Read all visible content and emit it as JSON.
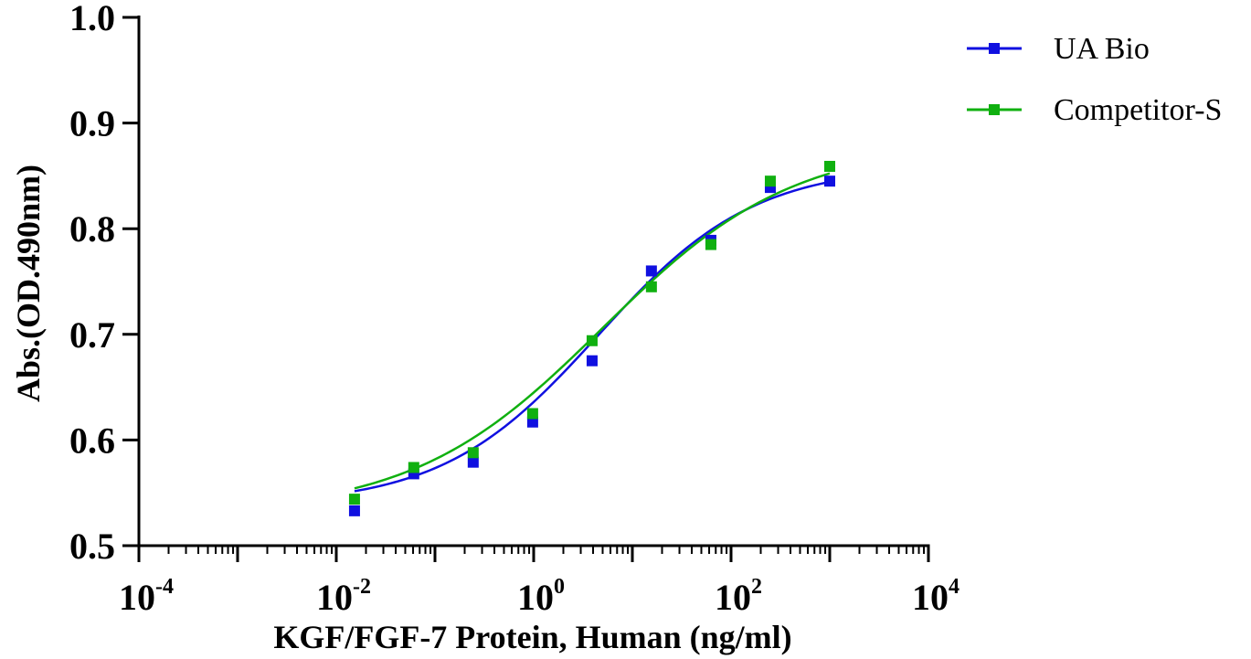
{
  "chart_data": {
    "type": "scatter",
    "x_scale": "log",
    "xlim": [
      0.0001,
      10000
    ],
    "ylim": [
      0.5,
      1.0
    ],
    "xlabel": "KGF/FGF-7 Protein, Human (ng/ml)",
    "ylabel": "Abs.(OD.490nm)",
    "x_ticks": [
      {
        "base": "10",
        "exp": "-4",
        "value": 0.0001
      },
      {
        "base": "10",
        "exp": "-2",
        "value": 0.01
      },
      {
        "base": "10",
        "exp": "0",
        "value": 1
      },
      {
        "base": "10",
        "exp": "2",
        "value": 100
      },
      {
        "base": "10",
        "exp": "4",
        "value": 10000
      }
    ],
    "y_ticks": [
      {
        "label": "0.5",
        "value": 0.5
      },
      {
        "label": "0.6",
        "value": 0.6
      },
      {
        "label": "0.7",
        "value": 0.7
      },
      {
        "label": "0.8",
        "value": 0.8
      },
      {
        "label": "0.9",
        "value": 0.9
      },
      {
        "label": "1.0",
        "value": 1.0
      }
    ],
    "grid": false,
    "legend_position": "top-right",
    "series": [
      {
        "name": "UA Bio",
        "color": "#1010e0",
        "marker": "square",
        "x": [
          0.0153,
          0.061,
          0.244,
          0.977,
          3.91,
          15.6,
          62.5,
          250,
          1000
        ],
        "y": [
          0.533,
          0.568,
          0.579,
          0.617,
          0.675,
          0.76,
          0.789,
          0.839,
          0.845
        ],
        "fit": {
          "bottom": 0.538,
          "top": 0.86,
          "ec50": 4.5,
          "hill": 0.55
        }
      },
      {
        "name": "Competitor-S",
        "color": "#10b010",
        "marker": "square",
        "x": [
          0.0153,
          0.061,
          0.244,
          0.977,
          3.91,
          15.6,
          62.5,
          250,
          1000
        ],
        "y": [
          0.544,
          0.574,
          0.588,
          0.625,
          0.694,
          0.745,
          0.785,
          0.845,
          0.859
        ],
        "fit": {
          "bottom": 0.53,
          "top": 0.882,
          "ec50": 5.0,
          "hill": 0.45
        }
      }
    ]
  }
}
